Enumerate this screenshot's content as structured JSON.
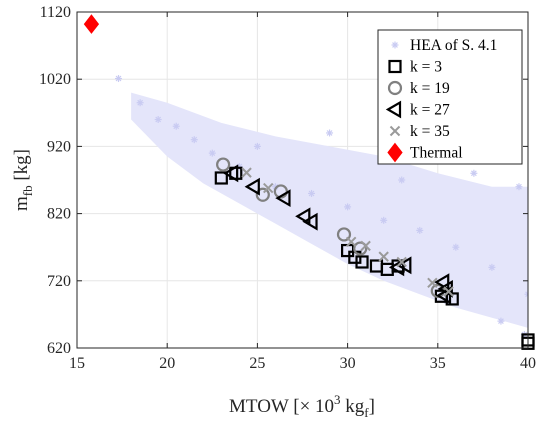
{
  "chart_data": {
    "type": "scatter",
    "xlabel": {
      "main": "MTOW [",
      "times": "×",
      "exp_base": " 10",
      "exp": "3",
      "unit": " kg",
      "unit_sub": "f",
      "close": "]"
    },
    "ylabel": {
      "main": "m",
      "sub": "fb",
      "unit": " [kg]"
    },
    "xlim": [
      15,
      40
    ],
    "ylim": [
      620,
      1120
    ],
    "xticks": [
      15,
      20,
      25,
      30,
      35,
      40
    ],
    "yticks": [
      620,
      720,
      820,
      920,
      1020,
      1120
    ],
    "grid": true,
    "legend_position": "top-right",
    "series": [
      {
        "name": "HEA of S. 4.1",
        "marker": "asterisk",
        "color": "#d3d5f5",
        "background_cloud": true,
        "points": [
          [
            17.3,
            1021
          ],
          [
            18.5,
            985
          ],
          [
            19.5,
            960
          ],
          [
            20.5,
            950
          ],
          [
            21.5,
            930
          ],
          [
            22.5,
            910
          ],
          [
            24,
            890
          ],
          [
            26,
            860
          ],
          [
            28,
            850
          ],
          [
            30,
            830
          ],
          [
            32,
            810
          ],
          [
            34,
            795
          ],
          [
            36,
            770
          ],
          [
            38,
            740
          ],
          [
            40,
            700
          ],
          [
            25,
            920
          ],
          [
            29,
            940
          ],
          [
            33,
            870
          ],
          [
            37,
            880
          ],
          [
            39.5,
            860
          ],
          [
            35.5,
            690
          ],
          [
            38.5,
            660
          ],
          [
            39.8,
            640
          ]
        ]
      },
      {
        "name": "k = 3",
        "marker": "square",
        "color": "#000000",
        "points": [
          [
            23.0,
            873
          ],
          [
            23.8,
            880
          ],
          [
            30.0,
            765
          ],
          [
            30.4,
            755
          ],
          [
            30.8,
            748
          ],
          [
            31.6,
            742
          ],
          [
            32.2,
            737
          ],
          [
            32.8,
            742
          ],
          [
            35.2,
            697
          ],
          [
            35.8,
            693
          ],
          [
            40.0,
            632
          ],
          [
            40.0,
            627
          ]
        ]
      },
      {
        "name": "k = 19",
        "marker": "circle",
        "color": "#808080",
        "points": [
          [
            23.1,
            893
          ],
          [
            25.3,
            848
          ],
          [
            26.3,
            853
          ],
          [
            29.8,
            789
          ],
          [
            30.7,
            768
          ],
          [
            35.0,
            705
          ]
        ]
      },
      {
        "name": "k = 27",
        "marker": "triangle-left",
        "color": "#000000",
        "points": [
          [
            23.6,
            880
          ],
          [
            24.8,
            860
          ],
          [
            26.5,
            843
          ],
          [
            27.6,
            816
          ],
          [
            28.0,
            808
          ],
          [
            32.8,
            740
          ],
          [
            33.2,
            743
          ],
          [
            35.3,
            718
          ],
          [
            35.5,
            708
          ],
          [
            35.4,
            698
          ]
        ]
      },
      {
        "name": "k = 35",
        "marker": "x",
        "color": "#9a9a9a",
        "points": [
          [
            24.4,
            881
          ],
          [
            25.6,
            858
          ],
          [
            30.2,
            778
          ],
          [
            31.0,
            772
          ],
          [
            32.0,
            756
          ],
          [
            33.0,
            748
          ],
          [
            34.7,
            717
          ],
          [
            35.6,
            704
          ]
        ]
      },
      {
        "name": "Thermal",
        "marker": "diamond",
        "color": "#ff0000",
        "points": [
          [
            15.8,
            1102
          ]
        ]
      }
    ]
  }
}
